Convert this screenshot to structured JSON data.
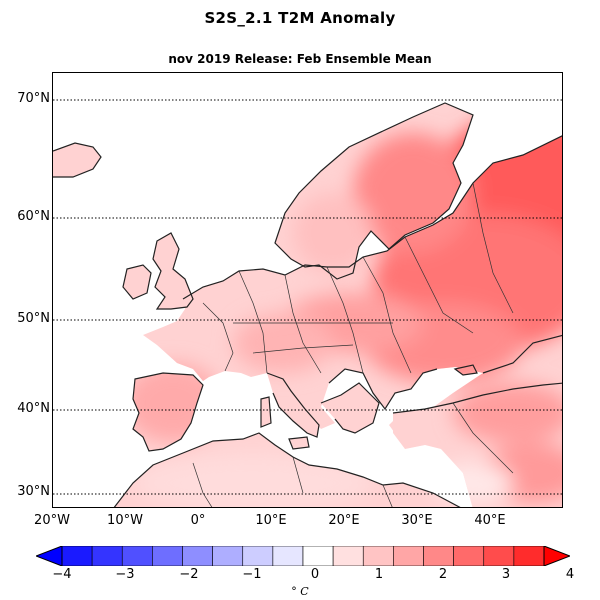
{
  "title": "S2S_2.1 T2M Anomaly",
  "subtitle": "nov 2019 Release: Feb Ensemble Mean",
  "map": {
    "region": "Europe",
    "projection": "PlateCarree",
    "lon_range": [
      -20,
      50
    ],
    "lat_range": [
      28,
      73
    ],
    "lat_labels": [
      "70°N",
      "60°N",
      "50°N",
      "40°N",
      "30°N"
    ],
    "lon_labels": [
      "20°W",
      "10°W",
      "0°",
      "10°E",
      "20°E",
      "30°E",
      "40°E"
    ],
    "gridlines": "dotted latitude lines",
    "ocean_color": "#ffffff",
    "anomaly_pattern": [
      {
        "area": "Western Europe and British Isles",
        "anomaly_c": "0.5–1.5"
      },
      {
        "area": "Iberia",
        "anomaly_c": "1–2"
      },
      {
        "area": "Central Europe",
        "anomaly_c": "1–2"
      },
      {
        "area": "Scandinavia",
        "anomaly_c": "0.5–1.5"
      },
      {
        "area": "Eastern Europe / Western Russia",
        "anomaly_c": "2–3"
      },
      {
        "area": "Northern Russia",
        "anomaly_c": "2.5–3"
      },
      {
        "area": "North Africa",
        "anomaly_c": "0.5–1"
      },
      {
        "area": "Turkey / Middle East",
        "anomaly_c": "0.5–1.5"
      }
    ]
  },
  "colorbar": {
    "ticks": [
      "−4",
      "−3",
      "−2",
      "−1",
      "0",
      "1",
      "2",
      "3",
      "4"
    ],
    "unit": "° C",
    "bins": [
      {
        "from": -4.0,
        "to": -3.5,
        "color": "#1a1aff"
      },
      {
        "from": -3.5,
        "to": -3.0,
        "color": "#3434ff"
      },
      {
        "from": -3.0,
        "to": -2.5,
        "color": "#5050ff"
      },
      {
        "from": -2.5,
        "to": -2.0,
        "color": "#6e6eff"
      },
      {
        "from": -2.0,
        "to": -1.5,
        "color": "#8e8eff"
      },
      {
        "from": -1.5,
        "to": -1.0,
        "color": "#aeaeff"
      },
      {
        "from": -1.0,
        "to": -0.5,
        "color": "#cdcdff"
      },
      {
        "from": -0.5,
        "to": 0.0,
        "color": "#e6e6ff"
      },
      {
        "from": 0.0,
        "to": 0.5,
        "color": "#ffffff"
      },
      {
        "from": 0.5,
        "to": 1.0,
        "color": "#ffe0e0"
      },
      {
        "from": 1.0,
        "to": 1.5,
        "color": "#ffc4c4"
      },
      {
        "from": 1.5,
        "to": 2.0,
        "color": "#ffa6a6"
      },
      {
        "from": 2.0,
        "to": 2.5,
        "color": "#ff8888"
      },
      {
        "from": 2.5,
        "to": 3.0,
        "color": "#ff6a6a"
      },
      {
        "from": 3.0,
        "to": 3.5,
        "color": "#ff4c4c"
      },
      {
        "from": 3.5,
        "to": 4.0,
        "color": "#ff2c2c"
      }
    ],
    "extend": "both",
    "min_extend_color": "#0000ff",
    "max_extend_color": "#ff0000"
  }
}
